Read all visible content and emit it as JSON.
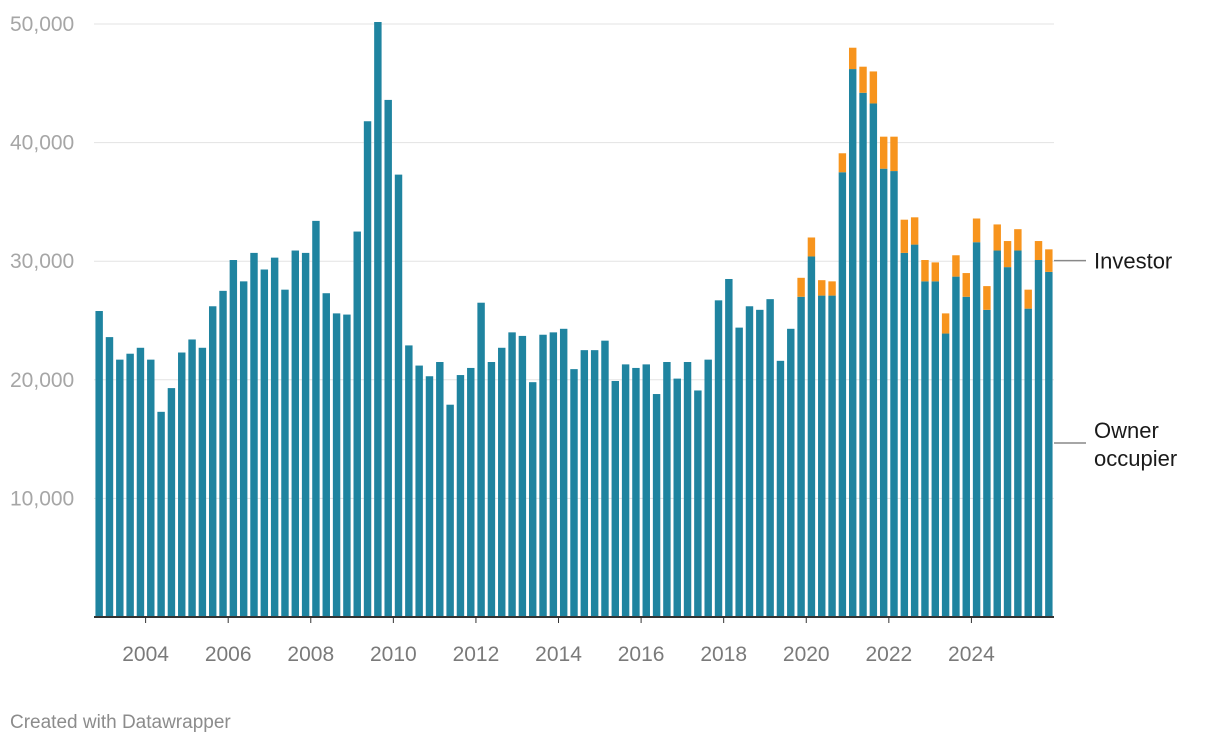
{
  "chart_data": {
    "type": "bar",
    "stacked": true,
    "title": "",
    "xlabel": "",
    "ylabel": "",
    "ylim": [
      0,
      50000
    ],
    "y_ticks": [
      10000,
      20000,
      30000,
      40000,
      50000
    ],
    "y_tick_labels": [
      "10,000",
      "20,000",
      "30,000",
      "40,000",
      "50,000"
    ],
    "x_tick_labels": [
      "2004",
      "2006",
      "2008",
      "2010",
      "2012",
      "2014",
      "2016",
      "2018",
      "2020",
      "2022",
      "2024"
    ],
    "x_tick_years": [
      2004,
      2006,
      2008,
      2010,
      2012,
      2014,
      2016,
      2018,
      2020,
      2022,
      2024
    ],
    "start_year": 2002.75,
    "periods_per_year": 4,
    "grid": true,
    "series": [
      {
        "name": "Owner occupier",
        "label_lines": [
          "Owner",
          "occupier"
        ],
        "color": "#1f84a0",
        "values": [
          25800,
          23600,
          21700,
          22200,
          22700,
          21700,
          17300,
          19300,
          22300,
          23400,
          22700,
          26200,
          27500,
          30100,
          28300,
          30700,
          29300,
          30300,
          27600,
          30900,
          30700,
          33400,
          27300,
          25600,
          25500,
          32500,
          41800,
          50400,
          43600,
          37300,
          22900,
          21200,
          20300,
          21500,
          17900,
          20400,
          21000,
          26500,
          21500,
          22700,
          24000,
          23700,
          19800,
          23800,
          24000,
          24300,
          20900,
          22500,
          22500,
          23300,
          19900,
          21300,
          21000,
          21300,
          18800,
          21500,
          20100,
          21500,
          19100,
          21700,
          26700,
          28500,
          24400,
          26200,
          25900,
          26800,
          21600,
          24300,
          27000,
          30400,
          27100,
          27100,
          37500,
          46200,
          44200,
          43300,
          37800,
          37600,
          30700,
          31400,
          28300,
          28300,
          23900,
          28700,
          27000,
          31600,
          25900,
          30900,
          29500,
          30900,
          26000,
          30100,
          29100
        ]
      },
      {
        "name": "Investor",
        "label_lines": [
          "Investor"
        ],
        "color": "#f7941d",
        "values": [
          0,
          0,
          0,
          0,
          0,
          0,
          0,
          0,
          0,
          0,
          0,
          0,
          0,
          0,
          0,
          0,
          0,
          0,
          0,
          0,
          0,
          0,
          0,
          0,
          0,
          0,
          0,
          0,
          0,
          0,
          0,
          0,
          0,
          0,
          0,
          0,
          0,
          0,
          0,
          0,
          0,
          0,
          0,
          0,
          0,
          0,
          0,
          0,
          0,
          0,
          0,
          0,
          0,
          0,
          0,
          0,
          0,
          0,
          0,
          0,
          0,
          0,
          0,
          0,
          0,
          0,
          0,
          0,
          1600,
          1600,
          1300,
          1200,
          1600,
          1800,
          2200,
          2700,
          2700,
          2900,
          2800,
          2300,
          1800,
          1600,
          1700,
          1800,
          2000,
          2000,
          2000,
          2200,
          2200,
          1800,
          1600,
          1600,
          1900
        ]
      }
    ]
  },
  "footer": {
    "credit": "Created with Datawrapper"
  }
}
